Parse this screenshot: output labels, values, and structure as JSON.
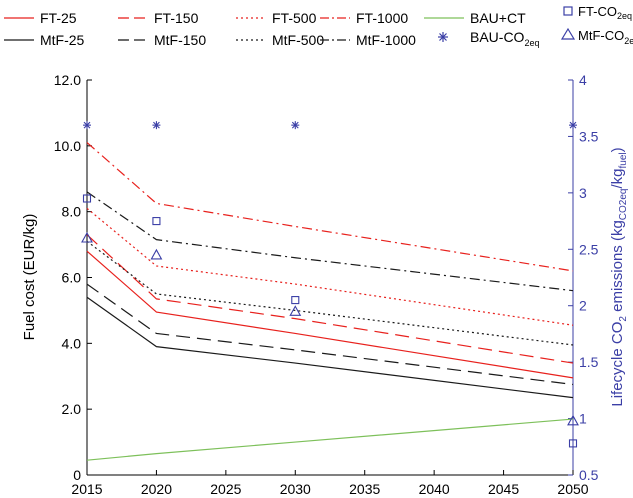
{
  "chart_data": {
    "type": "line",
    "x": [
      2015,
      2020,
      2030,
      2050
    ],
    "x_ticks": [
      "2015",
      "2020",
      "2025",
      "2030",
      "2035",
      "2040",
      "2045",
      "2050"
    ],
    "xlim": [
      2015,
      2050
    ],
    "ylabel": "Fuel cost (EUR/kg)",
    "ylim": [
      0,
      12
    ],
    "y_ticks": [
      "0",
      "2.0",
      "4.0",
      "6.0",
      "8.0",
      "10.0",
      "12.0"
    ],
    "y2label": {
      "main": "Lifecycle CO",
      "sub1": "2",
      "mid": " emissions (kg",
      "sub2": "CO2eq",
      "mid2": "/kg",
      "sub3": "fuel",
      "end": ")"
    },
    "y2lim": [
      0.5,
      4
    ],
    "y2_ticks": [
      "0.5",
      "1",
      "1.5",
      "2",
      "2.5",
      "3",
      "3.5",
      "4"
    ],
    "grid": false,
    "colors": {
      "ft": "#e8211d",
      "mtf": "#1a1a1a",
      "bau": "#7dc05a",
      "co2": "#3b3fa6",
      "axis2": "#3b3fa6"
    },
    "legend_labels": {
      "ft25": "FT-25",
      "ft150": "FT-150",
      "ft500": "FT-500",
      "ft1000": "FT-1000",
      "mtf25": "MtF-25",
      "mtf150": "MtF-150",
      "mtf500": "MtF-500",
      "mtf1000": "MtF-1000",
      "bauct": "BAU+CT",
      "bauco2": "BAU-CO",
      "ftco2": "FT-CO",
      "mtfco2": "MtF-CO",
      "co2sub": "2eq"
    },
    "series": [
      {
        "key": "ft25",
        "values": [
          6.8,
          4.95,
          4.3,
          2.95
        ],
        "color": "#e8211d",
        "dash": ""
      },
      {
        "key": "ft150",
        "values": [
          7.3,
          5.35,
          4.75,
          3.4
        ],
        "color": "#e8211d",
        "dash": "14,7"
      },
      {
        "key": "ft500",
        "values": [
          8.1,
          6.35,
          5.8,
          4.55
        ],
        "color": "#e8211d",
        "dash": "2,3"
      },
      {
        "key": "ft1000",
        "values": [
          10.1,
          8.25,
          7.55,
          6.2
        ],
        "color": "#e8211d",
        "dash": "10,4,2,4"
      },
      {
        "key": "mtf25",
        "values": [
          5.4,
          3.9,
          3.4,
          2.35
        ],
        "color": "#1a1a1a",
        "dash": ""
      },
      {
        "key": "mtf150",
        "values": [
          5.8,
          4.3,
          3.8,
          2.75
        ],
        "color": "#1a1a1a",
        "dash": "14,7"
      },
      {
        "key": "mtf500",
        "values": [
          7.1,
          5.5,
          5.0,
          3.95
        ],
        "color": "#1a1a1a",
        "dash": "2,3"
      },
      {
        "key": "mtf1000",
        "values": [
          8.6,
          7.15,
          6.6,
          5.6
        ],
        "color": "#1a1a1a",
        "dash": "10,4,2,4"
      },
      {
        "key": "bauct",
        "values": [
          0.45,
          0.65,
          1.0,
          1.7
        ],
        "color": "#7dc05a",
        "dash": ""
      }
    ],
    "co2_points": [
      {
        "key": "bauco2",
        "marker": "asterisk",
        "x": [
          2015,
          2020,
          2030,
          2050
        ],
        "y": [
          3.6,
          3.6,
          3.6,
          3.6
        ]
      },
      {
        "key": "ftco2",
        "marker": "square",
        "x": [
          2015,
          2020,
          2030,
          2050
        ],
        "y": [
          2.95,
          2.75,
          2.05,
          0.78
        ]
      },
      {
        "key": "mtfco2",
        "marker": "triangle",
        "x": [
          2015,
          2020,
          2030,
          2050
        ],
        "y": [
          2.6,
          2.45,
          1.95,
          0.98
        ]
      }
    ]
  }
}
